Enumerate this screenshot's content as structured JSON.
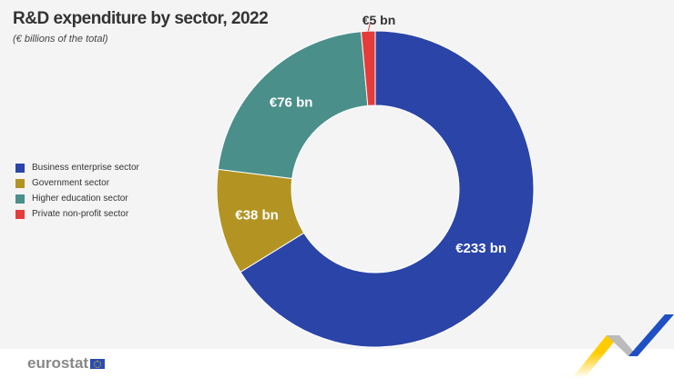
{
  "title": "R&D expenditure by sector, 2022",
  "subtitle": "(€ billions of the total)",
  "chart_data": {
    "type": "pie",
    "donut": true,
    "title": "R&D expenditure by sector, 2022",
    "subtitle": "(€ billions of the total)",
    "categories": [
      "Business enterprise sector",
      "Government sector",
      "Higher education sector",
      "Private non-profit sector"
    ],
    "values": [
      233,
      38,
      76,
      5
    ],
    "labels": [
      "€233 bn",
      "€38 bn",
      "€76 bn",
      "€5 bn"
    ],
    "colors": [
      "#2a44a8",
      "#b39422",
      "#4a8f8a",
      "#e63b3b"
    ],
    "legend": "left"
  },
  "footer": {
    "logo": "eurostat"
  }
}
